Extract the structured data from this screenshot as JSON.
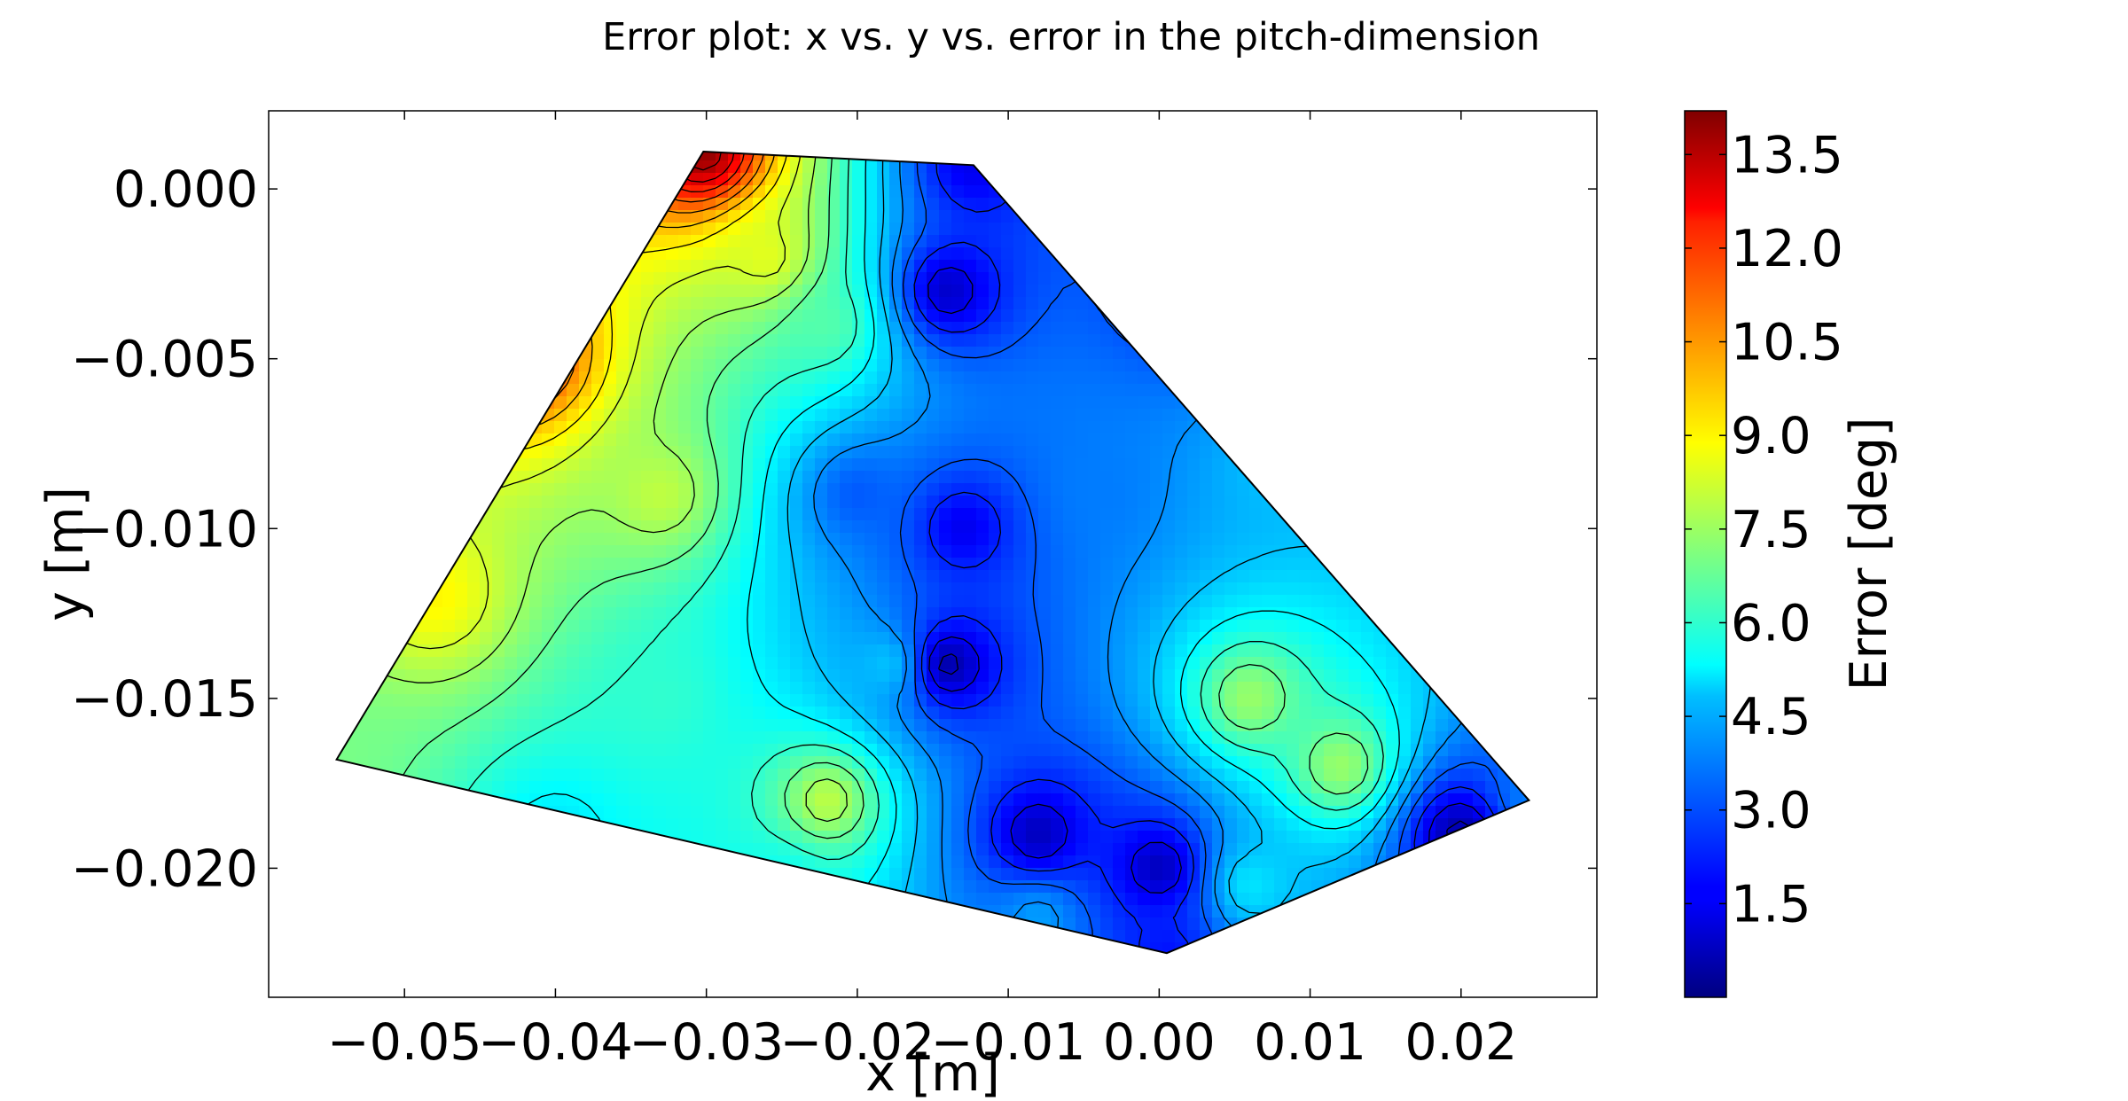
{
  "chart_data": {
    "type": "heatmap",
    "title": "Error plot: x vs. y vs. error in the pitch-dimension",
    "xlabel": "x [m]",
    "ylabel": "y [m]",
    "colorbar_label": "Error [deg]",
    "colormap": "jet",
    "xlim": [
      -0.059,
      0.029
    ],
    "ylim": [
      -0.0238,
      0.0023
    ],
    "clim": [
      0.0,
      14.2
    ],
    "x_ticks": [
      -0.05,
      -0.04,
      -0.03,
      -0.02,
      -0.01,
      0.0,
      0.01,
      0.02
    ],
    "x_tick_labels": [
      "−0.05",
      "−0.04",
      "−0.03",
      "−0.02",
      "−0.01",
      "0.00",
      "0.01",
      "0.02"
    ],
    "y_ticks": [
      0.0,
      -0.005,
      -0.01,
      -0.015,
      -0.02
    ],
    "y_tick_labels": [
      "0.000",
      "−0.005",
      "−0.010",
      "−0.015",
      "−0.020"
    ],
    "colorbar_ticks": [
      1.5,
      3.0,
      4.5,
      6.0,
      7.5,
      9.0,
      10.5,
      12.0,
      13.5
    ],
    "colorbar_tick_labels": [
      "1.5",
      "3.0",
      "4.5",
      "6.0",
      "7.5",
      "9.0",
      "10.5",
      "12.0",
      "13.5"
    ],
    "grid": false,
    "region_vertices": [
      {
        "x": -0.0302,
        "y": 0.0011
      },
      {
        "x": -0.0123,
        "y": 0.0007
      },
      {
        "x": 0.0245,
        "y": -0.018
      },
      {
        "x": 0.0005,
        "y": -0.0225
      },
      {
        "x": -0.0545,
        "y": -0.0168
      }
    ],
    "field_samples": [
      {
        "x": -0.0302,
        "y": 0.0011,
        "error": 14.0
      },
      {
        "x": -0.0123,
        "y": 0.0007,
        "error": 1.5
      },
      {
        "x": 0.0245,
        "y": -0.018,
        "error": 3.5
      },
      {
        "x": 0.0005,
        "y": -0.0225,
        "error": 2.0
      },
      {
        "x": -0.0545,
        "y": -0.0168,
        "error": 7.0
      },
      {
        "x": -0.042,
        "y": -0.005,
        "error": 12.0
      },
      {
        "x": -0.048,
        "y": -0.012,
        "error": 9.0
      },
      {
        "x": -0.026,
        "y": -0.002,
        "error": 8.5
      },
      {
        "x": -0.022,
        "y": -0.004,
        "error": 6.5
      },
      {
        "x": -0.02,
        "y": -0.009,
        "error": 3.0
      },
      {
        "x": -0.014,
        "y": -0.003,
        "error": 1.0
      },
      {
        "x": -0.013,
        "y": -0.01,
        "error": 1.5
      },
      {
        "x": -0.014,
        "y": -0.014,
        "error": 0.5
      },
      {
        "x": -0.008,
        "y": -0.019,
        "error": 0.8
      },
      {
        "x": 0.0,
        "y": -0.02,
        "error": 0.8
      },
      {
        "x": -0.004,
        "y": -0.009,
        "error": 3.5
      },
      {
        "x": 0.008,
        "y": -0.008,
        "error": 4.5
      },
      {
        "x": 0.006,
        "y": -0.015,
        "error": 7.5
      },
      {
        "x": 0.012,
        "y": -0.017,
        "error": 7.5
      },
      {
        "x": 0.02,
        "y": -0.019,
        "error": 0.5
      },
      {
        "x": -0.022,
        "y": -0.018,
        "error": 8.0
      },
      {
        "x": -0.033,
        "y": -0.015,
        "error": 6.0
      },
      {
        "x": -0.04,
        "y": -0.019,
        "error": 5.0
      },
      {
        "x": -0.025,
        "y": -0.0205,
        "error": 5.5
      },
      {
        "x": -0.033,
        "y": -0.009,
        "error": 8.0
      },
      {
        "x": -0.008,
        "y": -0.0215,
        "error": 4.0
      },
      {
        "x": 0.006,
        "y": -0.0205,
        "error": 5.0
      },
      {
        "x": -0.018,
        "y": -0.014,
        "error": 4.5
      },
      {
        "x": 0.002,
        "y": -0.003,
        "error": 2.0
      }
    ]
  }
}
